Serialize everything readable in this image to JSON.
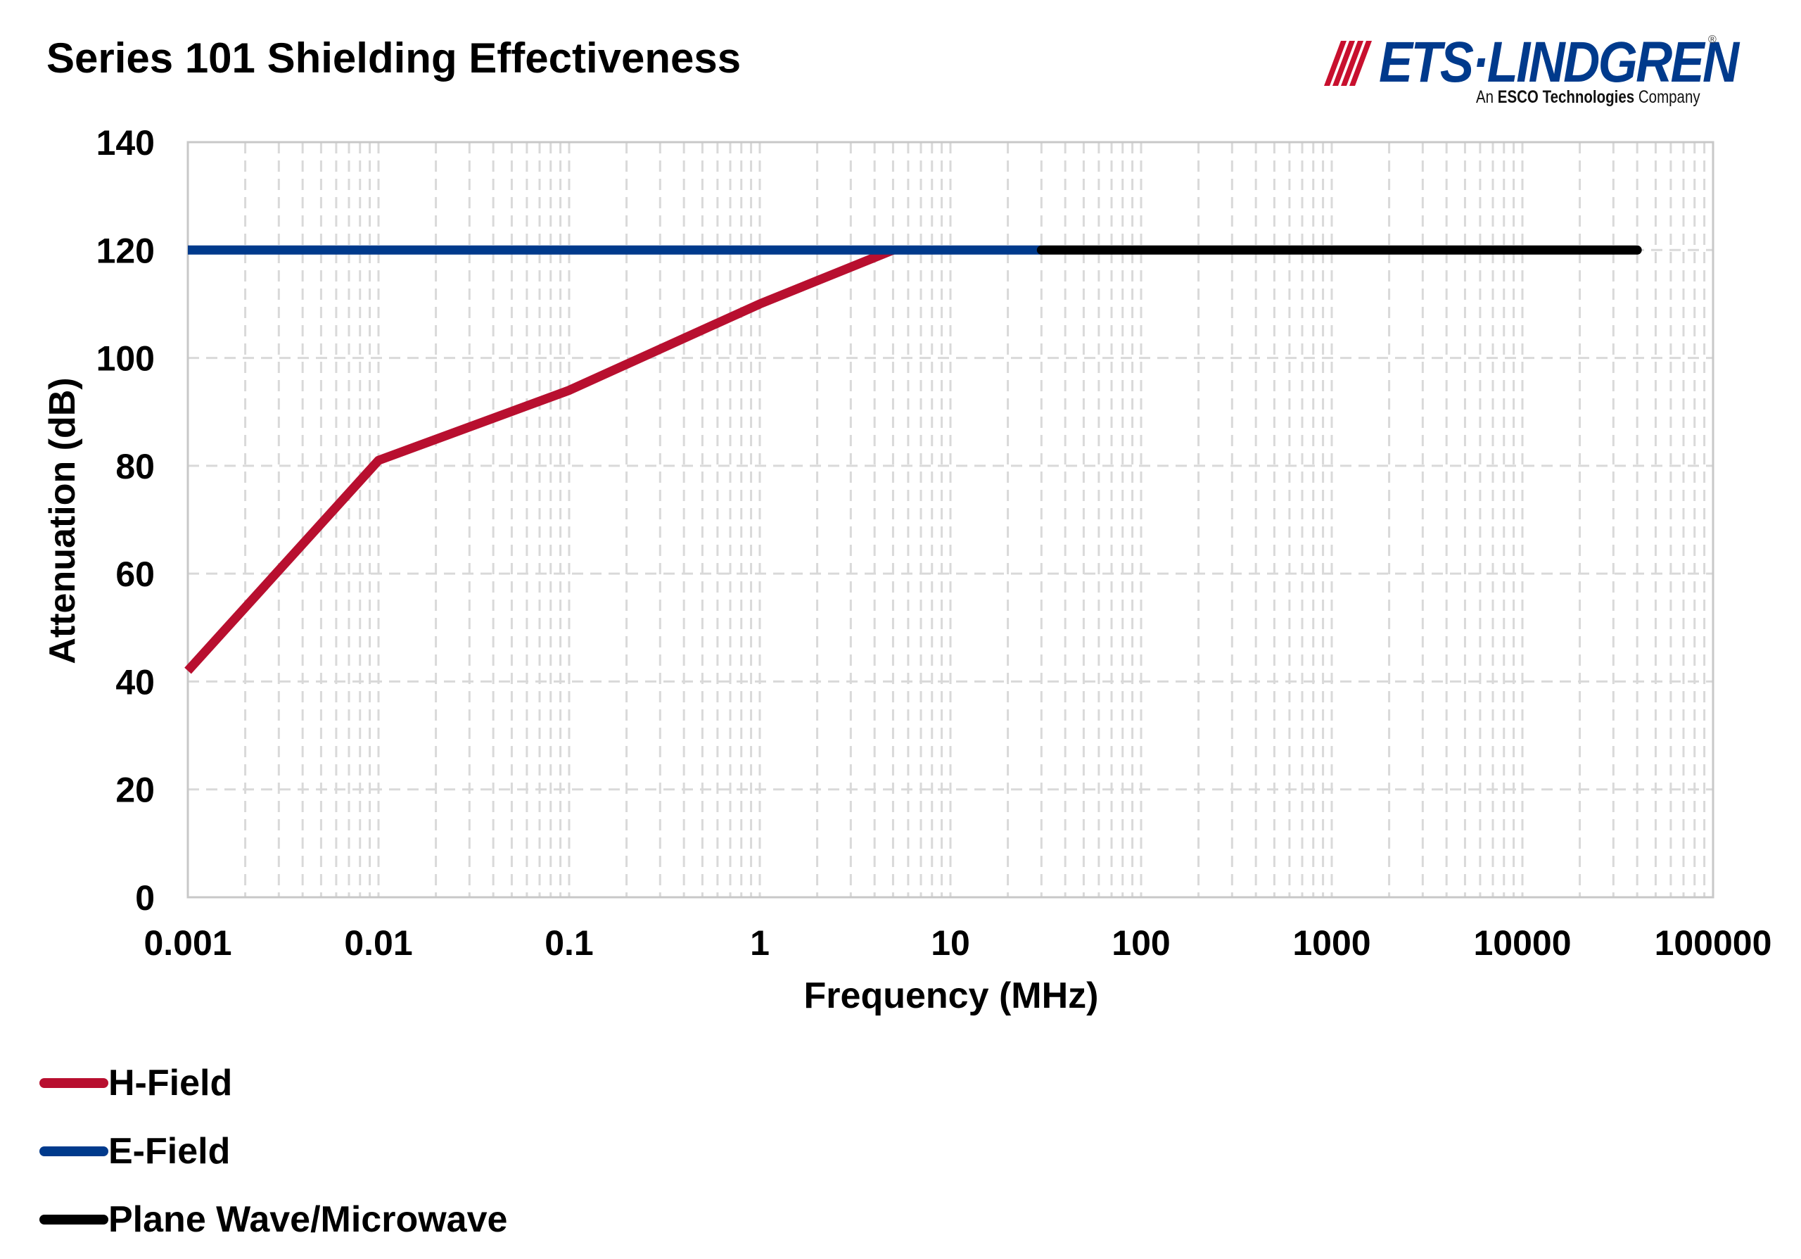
{
  "header": {
    "title": "Series 101 Shielding Effectiveness"
  },
  "logo": {
    "name": "ETS·LINDGREN",
    "registered": "®",
    "tagline_prefix": "An ",
    "tagline_bold": "ESCO Technologies",
    "tagline_suffix": " Company",
    "primary_color": "#003a8c",
    "accent_color": "#c8102e",
    "icon": "signal-waves-icon"
  },
  "chart_data": {
    "type": "line",
    "title": "Series 101 Shielding Effectiveness",
    "xlabel": "Frequency (MHz)",
    "ylabel": "Attenuation (dB)",
    "xscale": "log",
    "xlim": [
      0.001,
      100000
    ],
    "ylim": [
      0,
      140
    ],
    "x_ticks": [
      0.001,
      0.01,
      0.1,
      1,
      10,
      100,
      1000,
      10000,
      100000
    ],
    "x_tick_labels": [
      "0.001",
      "0.01",
      "0.1",
      "1",
      "10",
      "100",
      "1000",
      "10000",
      "100000"
    ],
    "y_ticks": [
      0,
      20,
      40,
      60,
      80,
      100,
      120,
      140
    ],
    "y_tick_labels": [
      "0",
      "20",
      "40",
      "60",
      "80",
      "100",
      "120",
      "140"
    ],
    "grid": {
      "major_y": "dashed",
      "minor_x": "dashed"
    },
    "legend_position": "bottom-left",
    "series": [
      {
        "name": "H-Field",
        "color": "#b80f2f",
        "points": [
          [
            0.001,
            42
          ],
          [
            0.01,
            81
          ],
          [
            0.1,
            94
          ],
          [
            1,
            110
          ],
          [
            5,
            120
          ]
        ]
      },
      {
        "name": "E-Field",
        "color": "#003a8c",
        "points": [
          [
            0.001,
            120
          ],
          [
            30,
            120
          ]
        ]
      },
      {
        "name": "Plane Wave/Microwave",
        "color": "#000000",
        "points": [
          [
            30,
            120
          ],
          [
            40000,
            120
          ]
        ]
      }
    ]
  }
}
